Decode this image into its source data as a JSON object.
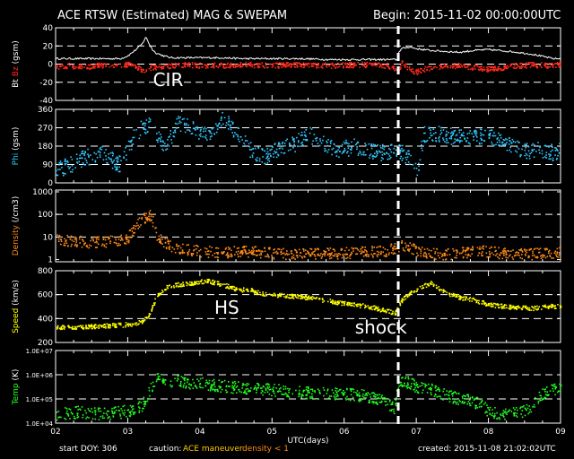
{
  "header": {
    "title": "ACE RTSW (Estimated) MAG & SWEPAM",
    "begin": "Begin: 2015-11-02 00:00:00UTC"
  },
  "footer": {
    "start_doy": "start DOY: 306",
    "caution_label": "caution:",
    "caution_maneuver": "ACE maneuver",
    "caution_density": "density < 1",
    "created": "created: 2015-11-08 21:02:02UTC"
  },
  "colors": {
    "background": "#000000",
    "bt": "#ffffff",
    "bz": "#ff2a1a",
    "phi": "#30c8ff",
    "density": "#ff8c1a",
    "speed": "#ffff00",
    "temp": "#22ff22",
    "maneuver": "#ffcc00",
    "density_caution": "#ff8c1a"
  },
  "chart_data": {
    "type": "scatter",
    "xlabel": "UTC(days)",
    "xlim": [
      2,
      9
    ],
    "x_ticks": [
      "02",
      "03",
      "04",
      "05",
      "06",
      "07",
      "08",
      "09"
    ],
    "shock_marker_day": 6.75,
    "annotations": [
      {
        "text": "CIR",
        "panel": "bt_bz",
        "day": 3.35
      },
      {
        "text": "HS",
        "panel": "speed",
        "day": 4.2
      },
      {
        "text": "shock",
        "panel": "speed",
        "day": 6.15
      }
    ],
    "panels": [
      {
        "id": "bt_bz",
        "ylabel_parts": [
          {
            "text": "Bt",
            "color": "#ffffff"
          },
          {
            "text": "Bz",
            "color": "#ff2a1a"
          },
          {
            "text": "(gsm)",
            "color": "#ffffff"
          }
        ],
        "ylim": [
          -40,
          40
        ],
        "ticks": [
          "40",
          "20",
          "0",
          "-20",
          "-40"
        ],
        "tick_values": [
          40,
          20,
          0,
          -20,
          -40
        ],
        "dashed": [
          20,
          0,
          -20
        ],
        "series": [
          {
            "name": "Bt",
            "color": "#ffffff",
            "kind": "line",
            "x": [
              2.0,
              2.3,
              2.6,
              2.9,
              3.0,
              3.1,
              3.2,
              3.25,
              3.3,
              3.35,
              3.4,
              3.5,
              3.6,
              3.8,
              4.0,
              4.3,
              4.6,
              5.0,
              5.4,
              5.8,
              6.2,
              6.6,
              6.74,
              6.76,
              6.8,
              6.9,
              7.0,
              7.2,
              7.4,
              7.6,
              7.8,
              8.0,
              8.3,
              8.6,
              8.9,
              9.0
            ],
            "y": [
              6,
              6,
              6,
              6,
              9,
              15,
              22,
              30,
              22,
              15,
              12,
              9,
              7,
              7,
              7,
              7,
              6,
              6,
              6,
              5,
              5,
              5,
              5,
              14,
              17,
              19,
              17,
              15,
              14,
              13,
              15,
              16,
              14,
              11,
              6,
              6
            ]
          },
          {
            "name": "Bz",
            "color": "#ff2a1a",
            "kind": "scatter",
            "x": [
              2.0,
              2.2,
              2.4,
              2.6,
              2.8,
              3.0,
              3.1,
              3.2,
              3.3,
              3.4,
              3.5,
              3.6,
              3.8,
              4.0,
              4.3,
              4.6,
              5.0,
              5.4,
              5.8,
              6.2,
              6.6,
              6.75,
              6.8,
              6.9,
              7.0,
              7.2,
              7.4,
              7.6,
              7.8,
              8.0,
              8.3,
              8.6,
              8.9,
              9.0
            ],
            "y": [
              -2,
              -1,
              -3,
              -1,
              -2,
              0,
              -3,
              -6,
              -4,
              -2,
              -2,
              -1,
              0,
              -1,
              -1,
              0,
              -1,
              0,
              -1,
              0,
              -1,
              -6,
              2,
              -5,
              -8,
              -3,
              -2,
              -1,
              -3,
              -5,
              -2,
              0,
              -1,
              0
            ],
            "spread": 3
          }
        ]
      },
      {
        "id": "phi",
        "ylabel_parts": [
          {
            "text": "Phi",
            "color": "#30c8ff"
          },
          {
            "text": "(gsm)",
            "color": "#ffffff"
          }
        ],
        "ylim": [
          0,
          360
        ],
        "ticks": [
          "360",
          "270",
          "180",
          "90",
          "0"
        ],
        "tick_values": [
          360,
          270,
          180,
          90,
          0
        ],
        "dashed": [
          270,
          180,
          90
        ],
        "series": [
          {
            "name": "Phi",
            "color": "#30c8ff",
            "kind": "scatter",
            "x": [
              2.0,
              2.3,
              2.6,
              2.9,
              3.1,
              3.3,
              3.5,
              3.7,
              3.9,
              4.1,
              4.3,
              4.5,
              4.7,
              4.9,
              5.1,
              5.3,
              5.5,
              5.7,
              5.9,
              6.1,
              6.3,
              6.5,
              6.7,
              6.8,
              6.9,
              7.0,
              7.1,
              7.3,
              7.5,
              7.7,
              7.9,
              8.1,
              8.3,
              8.5,
              8.7,
              8.9,
              9.0
            ],
            "y": [
              60,
              110,
              150,
              90,
              250,
              290,
              170,
              300,
              270,
              240,
              320,
              250,
              160,
              130,
              180,
              190,
              240,
              200,
              160,
              180,
              170,
              150,
              160,
              150,
              120,
              50,
              240,
              240,
              230,
              220,
              230,
              220,
              180,
              160,
              170,
              150,
              160
            ],
            "spread": 40
          }
        ]
      },
      {
        "id": "density",
        "ylabel_parts": [
          {
            "text": "Density",
            "color": "#ff8c1a"
          },
          {
            "text": "(/cm3)",
            "color": "#ffffff"
          }
        ],
        "log": true,
        "ylim": [
          0.8,
          1200
        ],
        "ticks": [
          "1000",
          "100",
          "10",
          "1"
        ],
        "tick_values": [
          1000,
          100,
          10,
          1
        ],
        "dashed": [
          100,
          10
        ],
        "series": [
          {
            "name": "Density",
            "color": "#ff8c1a",
            "kind": "scatter",
            "x": [
              2.0,
              2.2,
              2.5,
              2.8,
              3.0,
              3.1,
              3.2,
              3.3,
              3.35,
              3.4,
              3.5,
              3.6,
              3.8,
              4.0,
              4.3,
              4.6,
              5.0,
              5.4,
              5.8,
              6.2,
              6.6,
              6.75,
              6.8,
              7.0,
              7.3,
              7.6,
              7.9,
              8.2,
              8.5,
              8.8,
              9.0
            ],
            "y": [
              8,
              7,
              6,
              7,
              10,
              25,
              60,
              100,
              40,
              12,
              6,
              4,
              3,
              2.5,
              2.2,
              2.5,
              2.0,
              1.8,
              2.0,
              2.2,
              2.5,
              4,
              5,
              2.5,
              1.8,
              2.0,
              2.5,
              2.0,
              1.8,
              2.0,
              2.2
            ],
            "spread": 0.25
          }
        ]
      },
      {
        "id": "speed",
        "ylabel_parts": [
          {
            "text": "Speed",
            "color": "#ffff00"
          },
          {
            "text": "(km/s)",
            "color": "#ffffff"
          }
        ],
        "ylim": [
          200,
          800
        ],
        "ticks": [
          "800",
          "600",
          "400",
          "200"
        ],
        "tick_values": [
          800,
          600,
          400,
          200
        ],
        "dashed": [
          600,
          400
        ],
        "series": [
          {
            "name": "Speed",
            "color": "#ffff00",
            "kind": "scatter",
            "x": [
              2.0,
              2.3,
              2.6,
              2.9,
              3.1,
              3.2,
              3.3,
              3.35,
              3.4,
              3.5,
              3.7,
              3.9,
              4.1,
              4.3,
              4.5,
              4.7,
              4.9,
              5.1,
              5.3,
              5.5,
              5.7,
              5.9,
              6.1,
              6.3,
              6.5,
              6.7,
              6.8,
              6.9,
              7.0,
              7.2,
              7.4,
              7.6,
              7.8,
              8.0,
              8.3,
              8.6,
              8.9,
              9.0
            ],
            "y": [
              330,
              330,
              340,
              350,
              360,
              380,
              450,
              520,
              600,
              660,
              690,
              700,
              720,
              690,
              650,
              640,
              610,
              600,
              590,
              580,
              560,
              540,
              520,
              510,
              480,
              450,
              560,
              620,
              650,
              700,
              620,
              580,
              560,
              520,
              500,
              490,
              510,
              500
            ],
            "spread": 18
          }
        ]
      },
      {
        "id": "temp",
        "ylabel_parts": [
          {
            "text": "Temp",
            "color": "#22ff22"
          },
          {
            "text": "(K)",
            "color": "#ffffff"
          }
        ],
        "log": true,
        "ylim": [
          10000,
          10000000
        ],
        "ticks": [
          "1.0E+07",
          "1.0E+06",
          "1.0E+05",
          "1.0E+04"
        ],
        "tick_values": [
          10000000,
          1000000,
          100000,
          10000
        ],
        "dashed": [
          1000000,
          100000
        ],
        "series": [
          {
            "name": "Temp",
            "color": "#22ff22",
            "kind": "scatter",
            "x": [
              2.0,
              2.3,
              2.6,
              2.9,
              3.1,
              3.2,
              3.3,
              3.4,
              3.6,
              3.8,
              4.0,
              4.3,
              4.6,
              5.0,
              5.4,
              5.8,
              6.2,
              6.5,
              6.7,
              6.8,
              6.9,
              7.0,
              7.2,
              7.4,
              7.6,
              7.8,
              8.0,
              8.2,
              8.4,
              8.6,
              8.8,
              9.0
            ],
            "y": [
              25000,
              30000,
              25000,
              30000,
              40000,
              60000,
              200000,
              700000,
              600000,
              500000,
              450000,
              350000,
              300000,
              250000,
              200000,
              180000,
              150000,
              100000,
              40000,
              600000,
              500000,
              300000,
              250000,
              150000,
              100000,
              80000,
              30000,
              25000,
              30000,
              40000,
              200000,
              300000
            ],
            "spread": 0.25
          }
        ]
      }
    ]
  }
}
